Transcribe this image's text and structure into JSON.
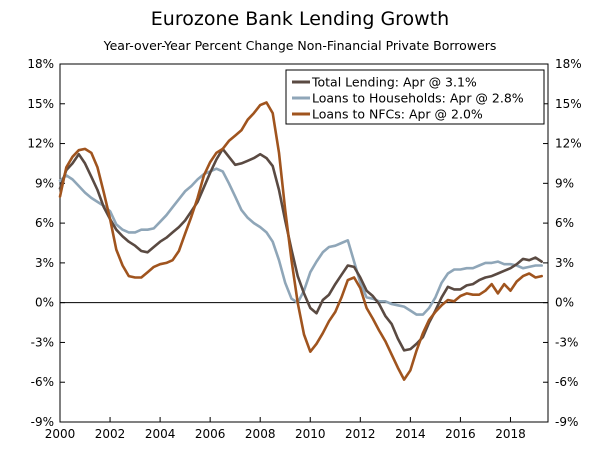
{
  "chart_data": {
    "type": "line",
    "title": "Eurozone Bank Lending Growth",
    "subtitle": "Year-over-Year Percent Change Non-Financial Private Borrowers",
    "xlabel": "",
    "ylabel": "",
    "xlim": [
      2000,
      2019.5
    ],
    "ylim": [
      -9,
      18
    ],
    "y_ticks": [
      -9,
      -6,
      -3,
      0,
      3,
      6,
      9,
      12,
      15,
      18
    ],
    "y_tick_labels": [
      "-9%",
      "-6%",
      "-3%",
      "0%",
      "3%",
      "6%",
      "9%",
      "12%",
      "15%",
      "18%"
    ],
    "x_ticks": [
      2000,
      2002,
      2004,
      2006,
      2008,
      2010,
      2012,
      2014,
      2016,
      2018
    ],
    "x_tick_labels": [
      "2000",
      "2002",
      "2004",
      "2006",
      "2008",
      "2010",
      "2012",
      "2014",
      "2016",
      "2018"
    ],
    "grid": false,
    "legend_position": "top-right",
    "series": [
      {
        "name": "Total Lending: Apr @ 3.1%",
        "color": "#5a4a42",
        "x": [
          2000.0,
          2000.25,
          2000.5,
          2000.75,
          2001.0,
          2001.25,
          2001.5,
          2001.75,
          2002.0,
          2002.25,
          2002.5,
          2002.75,
          2003.0,
          2003.25,
          2003.5,
          2003.75,
          2004.0,
          2004.25,
          2004.5,
          2004.75,
          2005.0,
          2005.25,
          2005.5,
          2005.75,
          2006.0,
          2006.25,
          2006.5,
          2006.75,
          2007.0,
          2007.25,
          2007.5,
          2007.75,
          2008.0,
          2008.25,
          2008.5,
          2008.75,
          2009.0,
          2009.25,
          2009.5,
          2009.75,
          2010.0,
          2010.25,
          2010.5,
          2010.75,
          2011.0,
          2011.25,
          2011.5,
          2011.75,
          2012.0,
          2012.25,
          2012.5,
          2012.75,
          2013.0,
          2013.25,
          2013.5,
          2013.75,
          2014.0,
          2014.25,
          2014.5,
          2014.75,
          2015.0,
          2015.25,
          2015.5,
          2015.75,
          2016.0,
          2016.25,
          2016.5,
          2016.75,
          2017.0,
          2017.25,
          2017.5,
          2017.75,
          2018.0,
          2018.25,
          2018.5,
          2018.75,
          2019.0,
          2019.25
        ],
        "values": [
          8.6,
          10.0,
          10.5,
          11.2,
          10.5,
          9.5,
          8.5,
          7.2,
          6.3,
          5.5,
          5.0,
          4.6,
          4.3,
          3.9,
          3.8,
          4.2,
          4.6,
          4.9,
          5.3,
          5.7,
          6.2,
          6.9,
          7.6,
          8.7,
          9.8,
          10.8,
          11.6,
          11.0,
          10.4,
          10.5,
          10.7,
          10.9,
          11.2,
          10.9,
          10.3,
          8.5,
          6.2,
          4.0,
          2.0,
          0.7,
          -0.4,
          -0.8,
          0.2,
          0.6,
          1.4,
          2.1,
          2.8,
          2.7,
          1.9,
          0.9,
          0.5,
          -0.1,
          -1.0,
          -1.6,
          -2.7,
          -3.6,
          -3.5,
          -3.1,
          -2.6,
          -1.5,
          -0.6,
          0.4,
          1.2,
          1.0,
          1.0,
          1.3,
          1.4,
          1.7,
          1.9,
          2.0,
          2.2,
          2.4,
          2.6,
          2.9,
          3.3,
          3.2,
          3.4,
          3.1
        ]
      },
      {
        "name": "Loans to Households: Apr @ 2.8%",
        "color": "#8fa6b8",
        "x": [
          2000.0,
          2000.25,
          2000.5,
          2000.75,
          2001.0,
          2001.25,
          2001.5,
          2001.75,
          2002.0,
          2002.25,
          2002.5,
          2002.75,
          2003.0,
          2003.25,
          2003.5,
          2003.75,
          2004.0,
          2004.25,
          2004.5,
          2004.75,
          2005.0,
          2005.25,
          2005.5,
          2005.75,
          2006.0,
          2006.25,
          2006.5,
          2006.75,
          2007.0,
          2007.25,
          2007.5,
          2007.75,
          2008.0,
          2008.25,
          2008.5,
          2008.75,
          2009.0,
          2009.25,
          2009.5,
          2009.75,
          2010.0,
          2010.25,
          2010.5,
          2010.75,
          2011.0,
          2011.25,
          2011.5,
          2011.75,
          2012.0,
          2012.25,
          2012.5,
          2012.75,
          2013.0,
          2013.25,
          2013.5,
          2013.75,
          2014.0,
          2014.25,
          2014.5,
          2014.75,
          2015.0,
          2015.25,
          2015.5,
          2015.75,
          2016.0,
          2016.25,
          2016.5,
          2016.75,
          2017.0,
          2017.25,
          2017.5,
          2017.75,
          2018.0,
          2018.25,
          2018.5,
          2018.75,
          2019.0,
          2019.25
        ],
        "values": [
          9.2,
          9.6,
          9.3,
          8.8,
          8.3,
          7.9,
          7.6,
          7.3,
          6.9,
          5.9,
          5.5,
          5.3,
          5.3,
          5.5,
          5.5,
          5.6,
          6.1,
          6.6,
          7.2,
          7.8,
          8.4,
          8.8,
          9.3,
          9.7,
          9.9,
          10.1,
          9.9,
          9.0,
          8.0,
          7.0,
          6.4,
          6.0,
          5.7,
          5.3,
          4.6,
          3.2,
          1.5,
          0.3,
          0.0,
          0.9,
          2.3,
          3.1,
          3.8,
          4.2,
          4.3,
          4.5,
          4.7,
          3.1,
          1.5,
          0.4,
          0.3,
          0.1,
          0.1,
          -0.1,
          -0.2,
          -0.3,
          -0.6,
          -0.9,
          -0.9,
          -0.4,
          0.4,
          1.5,
          2.2,
          2.5,
          2.5,
          2.6,
          2.6,
          2.8,
          3.0,
          3.0,
          3.1,
          2.9,
          2.9,
          2.8,
          2.6,
          2.7,
          2.8,
          2.8
        ]
      },
      {
        "name": "Loans to NFCs: Apr @ 2.0%",
        "color": "#a0541e",
        "x": [
          2000.0,
          2000.25,
          2000.5,
          2000.75,
          2001.0,
          2001.25,
          2001.5,
          2001.75,
          2002.0,
          2002.25,
          2002.5,
          2002.75,
          2003.0,
          2003.25,
          2003.5,
          2003.75,
          2004.0,
          2004.25,
          2004.5,
          2004.75,
          2005.0,
          2005.25,
          2005.5,
          2005.75,
          2006.0,
          2006.25,
          2006.5,
          2006.75,
          2007.0,
          2007.25,
          2007.5,
          2007.75,
          2008.0,
          2008.25,
          2008.5,
          2008.75,
          2009.0,
          2009.25,
          2009.5,
          2009.75,
          2010.0,
          2010.25,
          2010.5,
          2010.75,
          2011.0,
          2011.25,
          2011.5,
          2011.75,
          2012.0,
          2012.25,
          2012.5,
          2012.75,
          2013.0,
          2013.25,
          2013.5,
          2013.75,
          2014.0,
          2014.25,
          2014.5,
          2014.75,
          2015.0,
          2015.25,
          2015.5,
          2015.75,
          2016.0,
          2016.25,
          2016.5,
          2016.75,
          2017.0,
          2017.25,
          2017.5,
          2017.75,
          2018.0,
          2018.25,
          2018.5,
          2018.75,
          2019.0,
          2019.25
        ],
        "values": [
          8.0,
          10.2,
          11.0,
          11.5,
          11.6,
          11.3,
          10.2,
          8.3,
          6.3,
          4.0,
          2.8,
          2.0,
          1.9,
          1.9,
          2.3,
          2.7,
          2.9,
          3.0,
          3.2,
          3.9,
          5.2,
          6.5,
          7.9,
          9.6,
          10.6,
          11.3,
          11.6,
          12.2,
          12.6,
          13.0,
          13.8,
          14.3,
          14.9,
          15.1,
          14.3,
          11.3,
          7.0,
          3.2,
          0.0,
          -2.4,
          -3.7,
          -3.1,
          -2.3,
          -1.4,
          -0.7,
          0.4,
          1.7,
          1.9,
          1.1,
          -0.4,
          -1.2,
          -2.1,
          -2.9,
          -3.9,
          -4.9,
          -5.8,
          -5.1,
          -3.6,
          -2.3,
          -1.3,
          -0.7,
          -0.2,
          0.2,
          0.1,
          0.5,
          0.7,
          0.6,
          0.6,
          0.9,
          1.4,
          0.7,
          1.4,
          0.9,
          1.6,
          2.0,
          2.2,
          1.9,
          2.0
        ]
      }
    ]
  }
}
